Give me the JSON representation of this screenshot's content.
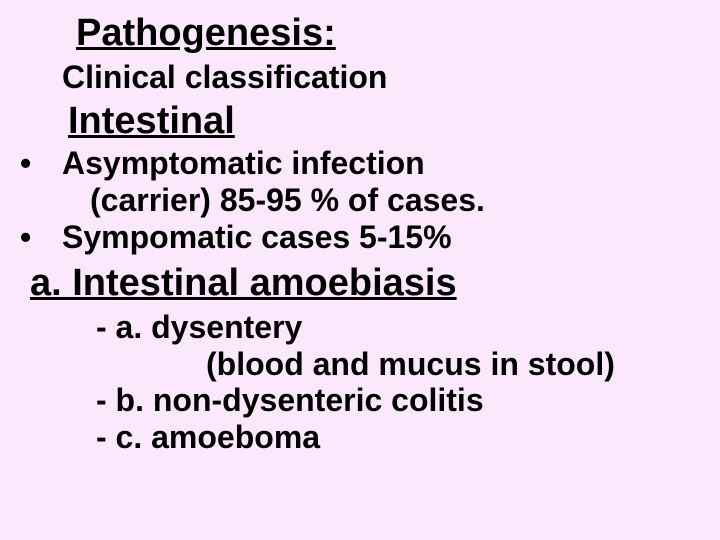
{
  "title": "Pathogenesis:",
  "subtitle": "Clinical classification",
  "section_heading": "Intestinal",
  "bullets": {
    "b1_line1": "Asymptomatic infection",
    "b1_line2": "(carrier)  85-95 % of cases.",
    "b2": "Sympomatic cases 5-15%"
  },
  "subsection": "a. Intestinal amoebiasis",
  "sublist": {
    "s1": "- a. dysentery",
    "s1_detail": "(blood and mucus in stool)",
    "s2": "- b. non-dysenteric colitis",
    "s3": "- c. amoeboma"
  },
  "colors": {
    "background": "#fce8fc",
    "text": "#000000"
  },
  "typography": {
    "font_family": "Comic Sans MS",
    "title_fontsize": 38,
    "subtitle_fontsize": 32,
    "body_fontsize": 32
  }
}
